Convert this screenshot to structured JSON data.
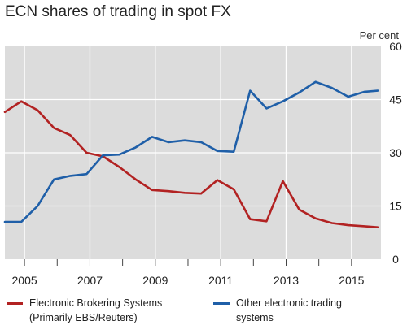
{
  "title": "ECN shares of trading in spot FX",
  "unit": "Per cent",
  "colors": {
    "plot_bg": "#dcdcdc",
    "grid": "#ffffff",
    "ebs": "#b22222",
    "other": "#1f5fa8"
  },
  "chart_data": {
    "type": "line",
    "title": "ECN shares of trading in spot FX",
    "ylabel": "Per cent",
    "xlim": [
      2004.4,
      2015.9
    ],
    "ylim": [
      0,
      60
    ],
    "yticks": [
      0,
      15,
      30,
      45,
      60
    ],
    "xticks": [
      2005,
      2007,
      2009,
      2011,
      2013,
      2015
    ],
    "grid": true,
    "legend_position": "bottom",
    "series": [
      {
        "name": "Electronic Brokering Systems (Primarily EBS/Reuters)",
        "label_lines": [
          "Electronic Brokering Systems",
          "(Primarily EBS/Reuters)"
        ],
        "color": "#b22222",
        "x": [
          2004.4,
          2004.9,
          2005.4,
          2005.9,
          2006.4,
          2006.9,
          2007.4,
          2007.9,
          2008.4,
          2008.9,
          2009.4,
          2009.9,
          2010.4,
          2010.9,
          2011.4,
          2011.9,
          2012.4,
          2012.9,
          2013.4,
          2013.9,
          2014.4,
          2014.9,
          2015.4,
          2015.8
        ],
        "y": [
          41.5,
          44.5,
          42,
          37,
          35,
          30,
          29,
          26,
          22.5,
          19.5,
          19.2,
          18.7,
          18.5,
          22.3,
          19.7,
          11.3,
          10.7,
          22,
          14,
          11.5,
          10.2,
          9.6,
          9.3,
          9
        ]
      },
      {
        "name": "Other electronic trading systems",
        "label_lines": [
          "Other electronic trading",
          "systems"
        ],
        "color": "#1f5fa8",
        "x": [
          2004.4,
          2004.9,
          2005.4,
          2005.9,
          2006.4,
          2006.9,
          2007.4,
          2007.9,
          2008.4,
          2008.9,
          2009.4,
          2009.9,
          2010.4,
          2010.9,
          2011.4,
          2011.9,
          2012.4,
          2012.9,
          2013.4,
          2013.9,
          2014.4,
          2014.9,
          2015.4,
          2015.8
        ],
        "y": [
          10.5,
          10.5,
          15,
          22.5,
          23.5,
          24,
          29.3,
          29.5,
          31.5,
          34.5,
          33,
          33.5,
          33,
          30.5,
          30.3,
          47.5,
          42.5,
          44.5,
          47,
          50,
          48.3,
          45.8,
          47.2,
          47.5
        ]
      }
    ]
  }
}
